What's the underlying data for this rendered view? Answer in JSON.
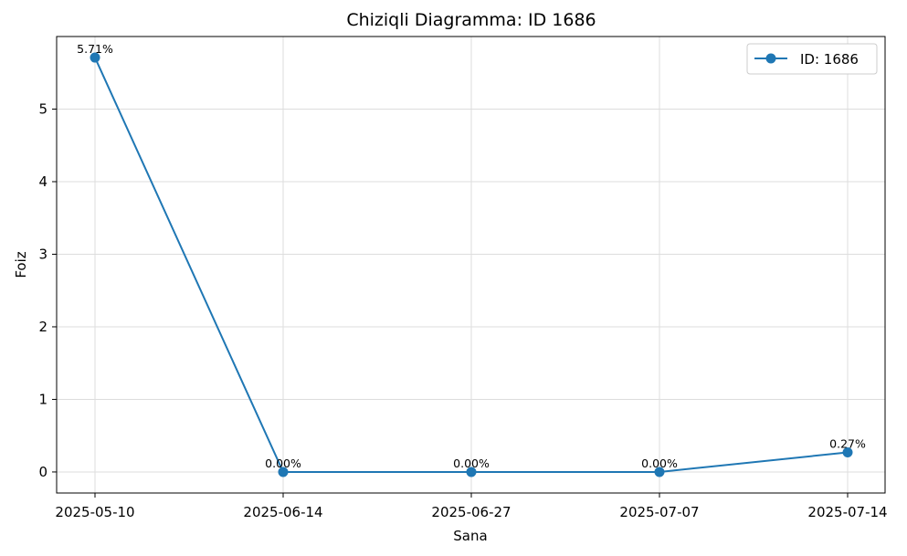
{
  "chart_data": {
    "type": "line",
    "title": "Chiziqli Diagramma: ID 1686",
    "xlabel": "Sana",
    "ylabel": "Foiz",
    "categories": [
      "2025-05-10",
      "2025-06-14",
      "2025-06-27",
      "2025-07-07",
      "2025-07-14"
    ],
    "series": [
      {
        "name": "ID: 1686",
        "values": [
          5.71,
          0.0,
          0.0,
          0.0,
          0.27
        ],
        "labels": [
          "5.71%",
          "0.00%",
          "0.00%",
          "0.00%",
          "0.27%"
        ],
        "color": "#1f77b4",
        "marker": "circle"
      }
    ],
    "yticks": [
      "0",
      "1",
      "2",
      "3",
      "4",
      "5"
    ],
    "ylim": [
      -0.29,
      6.0
    ],
    "grid": true,
    "legend_position": "top-right"
  }
}
